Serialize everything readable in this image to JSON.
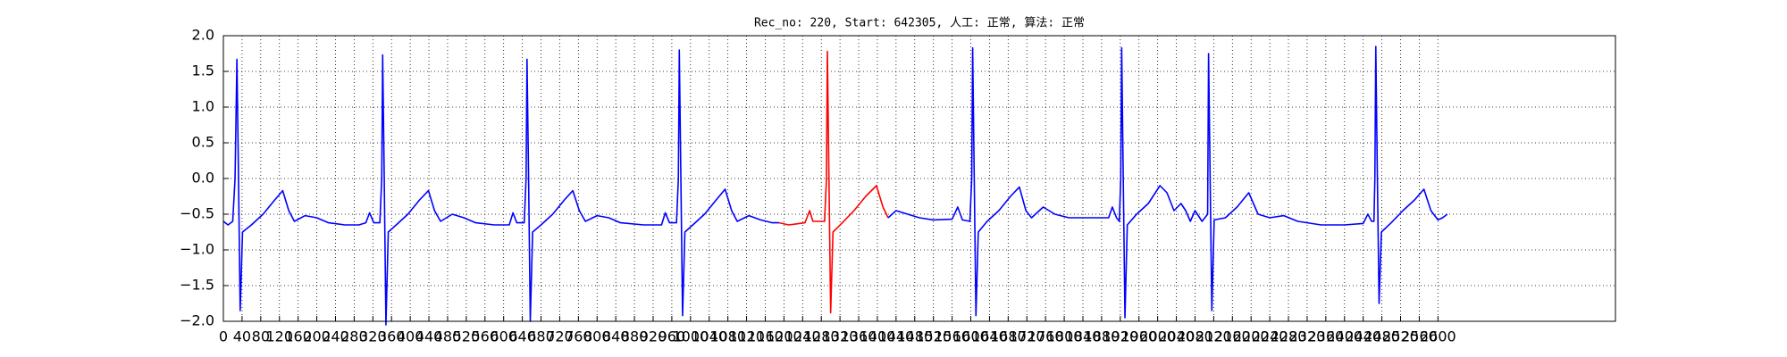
{
  "chart_data": {
    "type": "line",
    "title": "Rec_no: 220, Start: 642305, 人工: 正常, 算法: 正常",
    "xlim": [
      0,
      2980
    ],
    "ylim": [
      -2,
      2
    ],
    "grid": true,
    "xticks": [
      0,
      40,
      80,
      120,
      160,
      200,
      240,
      280,
      320,
      360,
      400,
      440,
      480,
      520,
      560,
      600,
      640,
      680,
      720,
      760,
      800,
      840,
      880,
      920,
      960,
      1000,
      1040,
      1080,
      1120,
      1160,
      1200,
      1240,
      1280,
      1320,
      1360,
      1400,
      1440,
      1480,
      1520,
      1560,
      1600,
      1640,
      1680,
      1720,
      1760,
      1800,
      1840,
      1880,
      1920,
      1960,
      2000,
      2040,
      2080,
      2120,
      2160,
      2200,
      2240,
      2280,
      2320,
      2360,
      2400,
      2440,
      2480,
      2520,
      2560,
      2600
    ],
    "yticks": [
      {
        "value": -2,
        "label": "−2.0"
      },
      {
        "value": -1.5,
        "label": "−1.5"
      },
      {
        "value": -1,
        "label": "−1.0"
      },
      {
        "value": -0.5,
        "label": "−0.5"
      },
      {
        "value": 0,
        "label": "0.0"
      },
      {
        "value": 0.5,
        "label": "0.5"
      },
      {
        "value": 1,
        "label": "1.0"
      },
      {
        "value": 1.5,
        "label": "1.5"
      },
      {
        "value": 2,
        "label": "2.0"
      }
    ],
    "series": [
      {
        "color": "#0000ff",
        "x": [
          0,
          10,
          20,
          25,
          29,
          32,
          36,
          41,
          60,
          85,
          110,
          127,
          140,
          152,
          175,
          200,
          225,
          260,
          290,
          305,
          313,
          322,
          335,
          339,
          341,
          344,
          348,
          353,
          370,
          395,
          420,
          439,
          452,
          465,
          490,
          515,
          540,
          580,
          612,
          620,
          628,
          644,
          648,
          650,
          653,
          657,
          662,
          680,
          705,
          730,
          748,
          762,
          775,
          800,
          825,
          850,
          900,
          938,
          946,
          955,
          970,
          974,
          976,
          979,
          983,
          988,
          1005,
          1030,
          1055,
          1074,
          1088,
          1100,
          1125,
          1150,
          1175,
          1190
        ],
        "values": [
          -0.6,
          -0.65,
          -0.6,
          0.0,
          1.67,
          0.2,
          -1.85,
          -0.75,
          -0.65,
          -0.5,
          -0.3,
          -0.17,
          -0.45,
          -0.6,
          -0.52,
          -0.55,
          -0.62,
          -0.65,
          -0.65,
          -0.62,
          -0.48,
          -0.62,
          -0.62,
          0.0,
          1.73,
          0.2,
          -2.05,
          -0.75,
          -0.65,
          -0.5,
          -0.3,
          -0.17,
          -0.45,
          -0.6,
          -0.5,
          -0.55,
          -0.62,
          -0.65,
          -0.65,
          -0.48,
          -0.62,
          -0.62,
          0.0,
          1.67,
          0.2,
          -2.0,
          -0.75,
          -0.65,
          -0.5,
          -0.3,
          -0.17,
          -0.45,
          -0.6,
          -0.52,
          -0.55,
          -0.62,
          -0.65,
          -0.65,
          -0.48,
          -0.62,
          -0.62,
          0.0,
          1.8,
          0.2,
          -1.92,
          -0.75,
          -0.65,
          -0.5,
          -0.3,
          -0.15,
          -0.45,
          -0.6,
          -0.52,
          -0.58,
          -0.62,
          -0.62
        ]
      },
      {
        "color": "#ff0000",
        "x": [
          1190,
          1210,
          1245,
          1255,
          1262,
          1287,
          1291,
          1293,
          1296,
          1300,
          1305,
          1325,
          1350,
          1375,
          1398,
          1412,
          1423
        ],
        "values": [
          -0.62,
          -0.65,
          -0.62,
          -0.45,
          -0.6,
          -0.6,
          0.0,
          1.78,
          0.2,
          -1.88,
          -0.75,
          -0.62,
          -0.45,
          -0.25,
          -0.1,
          -0.4,
          -0.55
        ]
      },
      {
        "color": "#0000ff",
        "x": [
          1423,
          1440,
          1465,
          1490,
          1520,
          1560,
          1572,
          1582,
          1598,
          1602,
          1604,
          1607,
          1611,
          1616,
          1635,
          1660,
          1685,
          1704,
          1718,
          1730,
          1755,
          1780,
          1810,
          1860,
          1895,
          1903,
          1912,
          1918,
          1921,
          1923,
          1926,
          1930,
          1935,
          1955,
          1980,
          2005,
          2020,
          2035,
          2050,
          2060,
          2070,
          2080,
          2095,
          2107,
          2109,
          2112,
          2116,
          2121,
          2145,
          2170,
          2195,
          2215,
          2240,
          2270,
          2300,
          2350,
          2400,
          2440,
          2450,
          2458,
          2463,
          2465,
          2467,
          2470,
          2474,
          2479,
          2500,
          2525,
          2550,
          2570,
          2585,
          2600,
          2610,
          2620
        ],
        "values": [
          -0.55,
          -0.45,
          -0.5,
          -0.55,
          -0.58,
          -0.57,
          -0.4,
          -0.58,
          -0.6,
          0.0,
          1.83,
          0.2,
          -1.92,
          -0.75,
          -0.6,
          -0.45,
          -0.25,
          -0.12,
          -0.45,
          -0.55,
          -0.4,
          -0.5,
          -0.55,
          -0.55,
          -0.55,
          -0.4,
          -0.55,
          -0.6,
          0.0,
          1.83,
          0.2,
          -1.95,
          -0.65,
          -0.5,
          -0.35,
          -0.1,
          -0.2,
          -0.45,
          -0.35,
          -0.45,
          -0.6,
          -0.45,
          -0.6,
          -0.5,
          1.75,
          0.2,
          -1.85,
          -0.58,
          -0.55,
          -0.4,
          -0.2,
          -0.5,
          -0.55,
          -0.52,
          -0.6,
          -0.65,
          -0.65,
          -0.63,
          -0.5,
          -0.6,
          -0.6,
          0.0,
          1.85,
          0.2,
          -1.75,
          -0.75,
          -0.62,
          -0.45,
          -0.3,
          -0.15,
          -0.45,
          -0.58,
          -0.55,
          -0.5
        ]
      }
    ]
  }
}
